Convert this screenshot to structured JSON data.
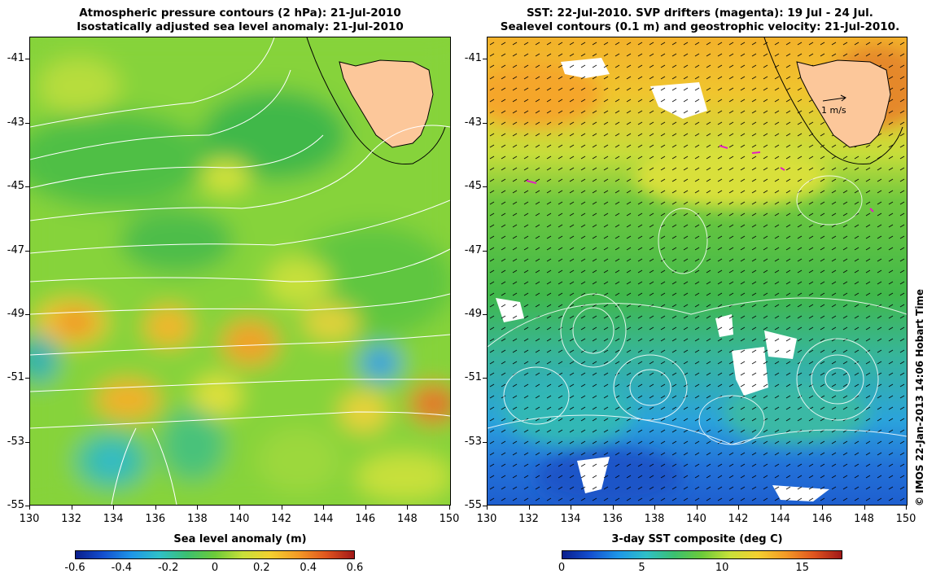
{
  "left_panel": {
    "title_line1": "Atmospheric pressure contours (2 hPa): 21-Jul-2010",
    "title_line2": "Isostatically adjusted sea level anomaly: 21-Jul-2010",
    "colorbar_label": "Sea level anomaly (m)",
    "colorbar_ticks": [
      "-0.6",
      "-0.4",
      "-0.2",
      "0",
      "0.2",
      "0.4",
      "0.6"
    ],
    "colorbar_range": [
      -0.6,
      0.6
    ]
  },
  "right_panel": {
    "title_line1": "SST: 22-Jul-2010. SVP drifters (magenta): 19 Jul - 24 Jul.",
    "title_line2": "Sealevel contours (0.1 m) and geostrophic velocity: 21-Jul-2010.",
    "colorbar_label": "3-day SST composite (deg C)",
    "colorbar_ticks": [
      "0",
      "5",
      "10",
      "15"
    ],
    "colorbar_range": [
      0,
      17.5
    ],
    "vector_scale_label": "1 m/s"
  },
  "axes": {
    "lat_labels": [
      "-41",
      "-43",
      "-45",
      "-47",
      "-49",
      "-51",
      "-53",
      "-55"
    ],
    "lon_labels": [
      "130",
      "132",
      "134",
      "136",
      "138",
      "140",
      "142",
      "144",
      "146",
      "148",
      "150"
    ],
    "lat_range": [
      -55,
      -40.3
    ],
    "lon_range": [
      130,
      150
    ]
  },
  "credit": "© IMOS 22-Jan-2013 14:06 Hobart Time",
  "colors": {
    "land": "#fcc79a",
    "coastline": "#000000",
    "contour": "#ffffff",
    "drifter": "#e020c0"
  }
}
